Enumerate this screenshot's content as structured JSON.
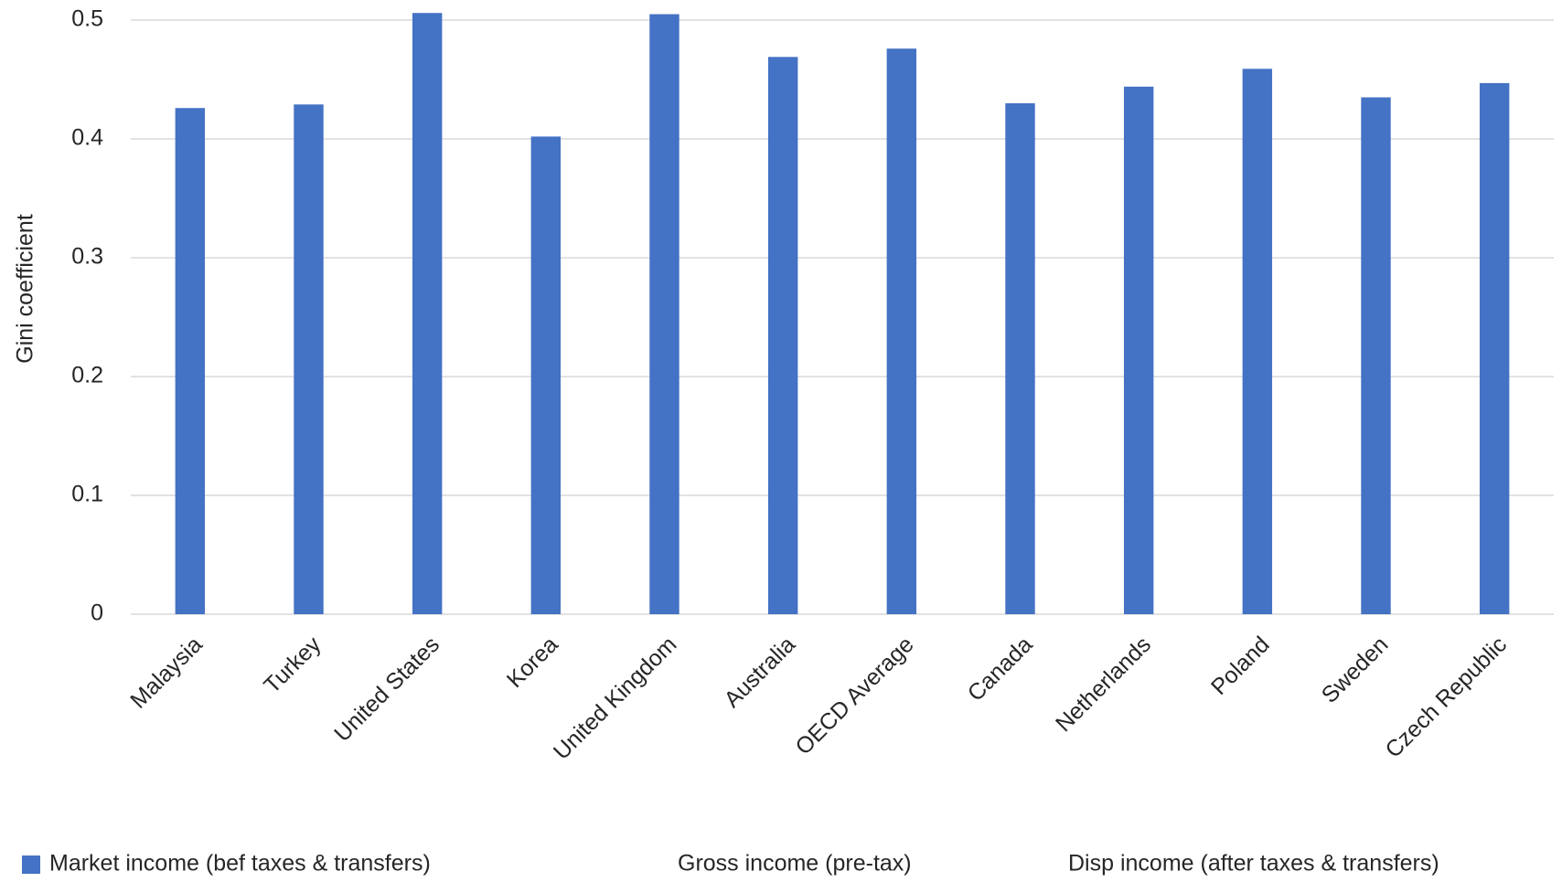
{
  "chart_data": {
    "type": "bar",
    "y_label": "Gini coefficient",
    "categories": [
      "Malaysia",
      "Turkey",
      "United States",
      "Korea",
      "United Kingdom",
      "Australia",
      "OECD Average",
      "Canada",
      "Netherlands",
      "Poland",
      "Sweden",
      "Czech Republic"
    ],
    "series": [
      {
        "name": "Market income (bef taxes & transfers)",
        "color": "#4472c4",
        "values": [
          0.426,
          0.429,
          0.506,
          0.402,
          0.505,
          0.469,
          0.476,
          0.43,
          0.444,
          0.459,
          0.435,
          0.447
        ]
      },
      {
        "name": "Gross income (pre-tax)",
        "values": [
          null,
          null,
          null,
          null,
          null,
          null,
          null,
          null,
          null,
          null,
          null,
          null
        ]
      },
      {
        "name": "Disp income (after taxes & transfers)",
        "values": [
          null,
          null,
          null,
          null,
          null,
          null,
          null,
          null,
          null,
          null,
          null,
          null
        ]
      }
    ],
    "ylim": [
      0,
      0.5
    ],
    "yticks": [
      0,
      0.1,
      0.2,
      0.3,
      0.4,
      0.5
    ],
    "grid": true,
    "legend": "bottom"
  }
}
